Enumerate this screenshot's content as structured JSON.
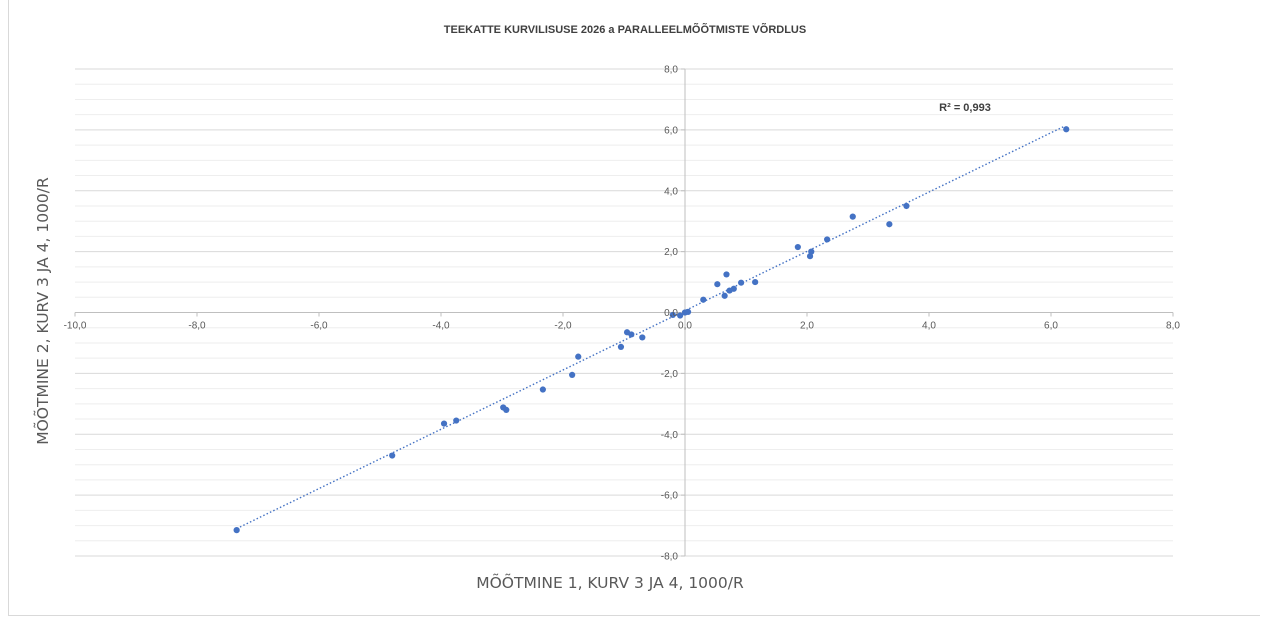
{
  "chart_data": {
    "type": "scatter",
    "title": "TEEKATTE KURVILISUSE 2026 a PARALLEELMÕÕTMISTE VÕRDLUS",
    "xlabel": "MÕÕTMINE 1,  KURV 3 JA 4, 1000/R",
    "ylabel": "MÕÕTMINE 2,  KURV 3 JA 4, 1000/R",
    "xlim": [
      -10,
      8
    ],
    "ylim": [
      -8,
      8
    ],
    "x_ticks": [
      "-10,0",
      "-8,0",
      "-6,0",
      "-4,0",
      "-2,0",
      "0,0",
      "2,0",
      "4,0",
      "6,0",
      "8,0"
    ],
    "y_ticks": [
      "-8,0",
      "-6,0",
      "-4,0",
      "-2,0",
      "0,0",
      "2,0",
      "4,0",
      "6,0",
      "8,0"
    ],
    "grid": "horizontal major and minor",
    "trendline": {
      "type": "linear",
      "style": "dotted",
      "x": [
        -7.35,
        6.2
      ],
      "y": [
        -7.1,
        6.1
      ],
      "r_squared_label": "R² = 0,993"
    },
    "colors": {
      "points": "#4472c4",
      "trendline": "#4472c4",
      "grid": "#d9d9d9",
      "axis": "#bfbfbf"
    },
    "points": [
      {
        "x": -7.35,
        "y": -7.15
      },
      {
        "x": -4.8,
        "y": -4.7
      },
      {
        "x": -3.95,
        "y": -3.65
      },
      {
        "x": -3.75,
        "y": -3.55
      },
      {
        "x": -2.98,
        "y": -3.12
      },
      {
        "x": -2.93,
        "y": -3.2
      },
      {
        "x": -2.33,
        "y": -2.53
      },
      {
        "x": -1.85,
        "y": -2.05
      },
      {
        "x": -1.75,
        "y": -1.45
      },
      {
        "x": -1.05,
        "y": -1.13
      },
      {
        "x": -0.95,
        "y": -0.65
      },
      {
        "x": -0.88,
        "y": -0.72
      },
      {
        "x": -0.7,
        "y": -0.82
      },
      {
        "x": -0.2,
        "y": -0.08
      },
      {
        "x": -0.08,
        "y": -0.1
      },
      {
        "x": 0.0,
        "y": 0.0
      },
      {
        "x": 0.05,
        "y": 0.02
      },
      {
        "x": 0.3,
        "y": 0.42
      },
      {
        "x": 0.53,
        "y": 0.93
      },
      {
        "x": 0.65,
        "y": 0.55
      },
      {
        "x": 0.68,
        "y": 1.25
      },
      {
        "x": 0.73,
        "y": 0.72
      },
      {
        "x": 0.8,
        "y": 0.78
      },
      {
        "x": 0.92,
        "y": 0.98
      },
      {
        "x": 1.15,
        "y": 1.0
      },
      {
        "x": 1.85,
        "y": 2.15
      },
      {
        "x": 2.05,
        "y": 1.85
      },
      {
        "x": 2.07,
        "y": 2.0
      },
      {
        "x": 2.33,
        "y": 2.4
      },
      {
        "x": 2.75,
        "y": 3.15
      },
      {
        "x": 3.35,
        "y": 2.9
      },
      {
        "x": 3.63,
        "y": 3.5
      },
      {
        "x": 6.25,
        "y": 6.02
      }
    ]
  }
}
